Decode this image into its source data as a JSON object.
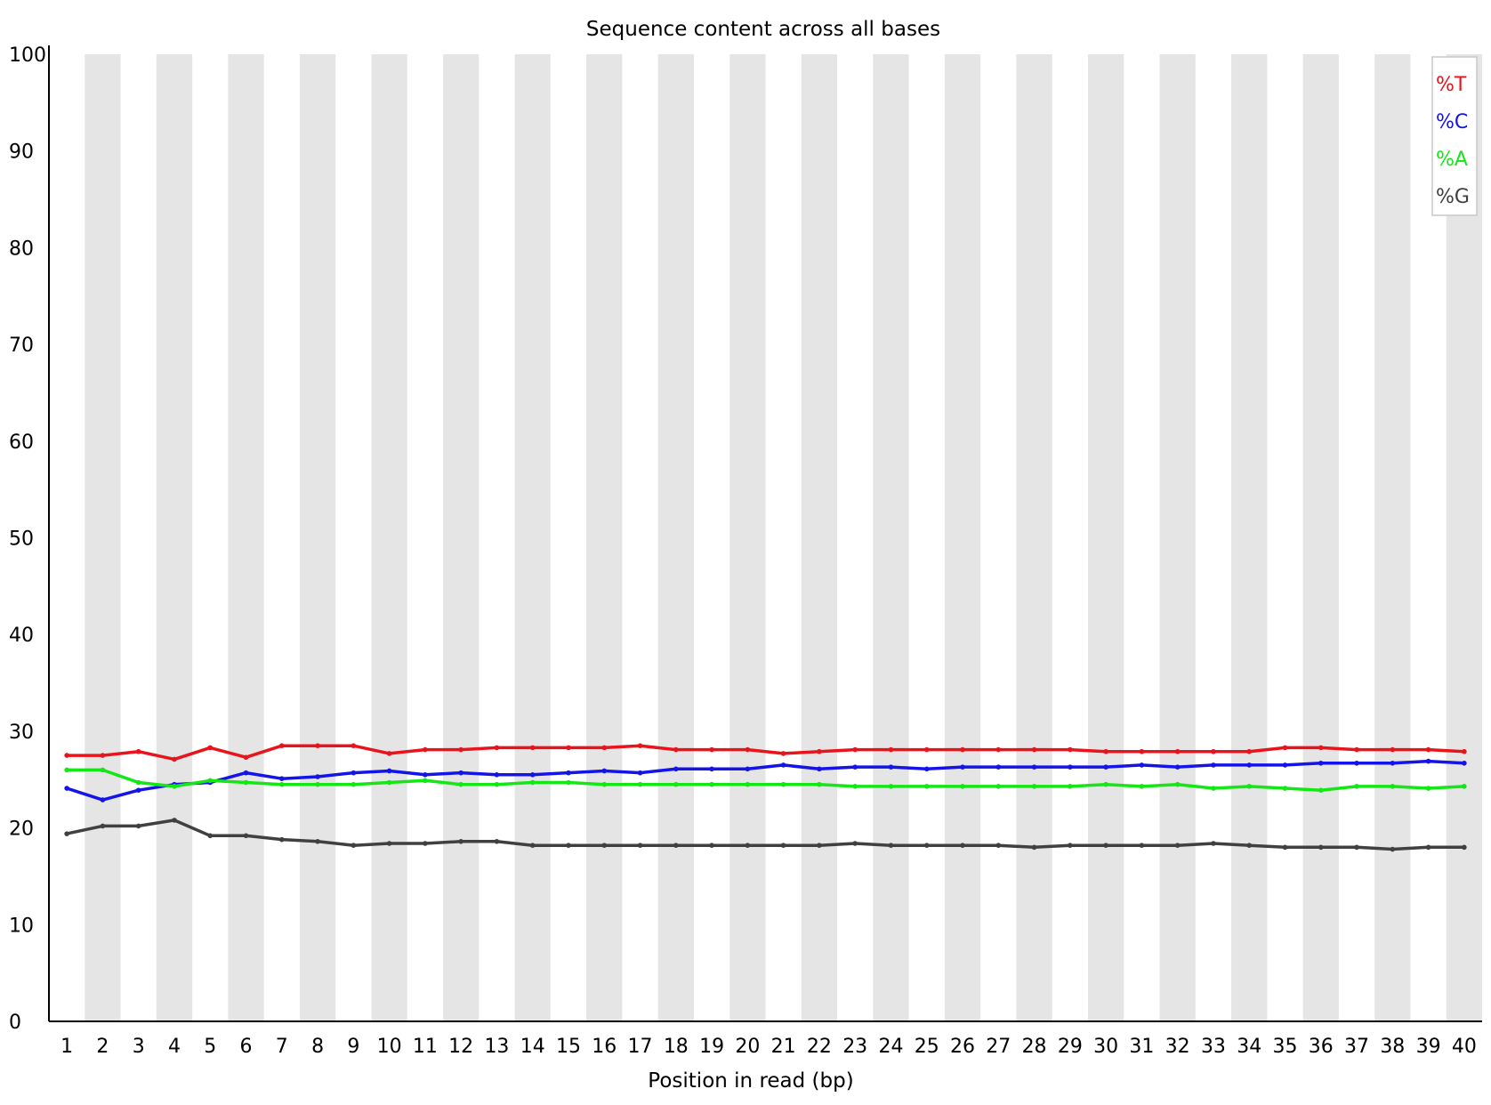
{
  "chart_data": {
    "type": "line",
    "title": "Sequence content across all bases",
    "xlabel": "Position in read (bp)",
    "ylabel": "",
    "ylim": [
      0,
      100
    ],
    "yticks": [
      "0",
      "10",
      "20",
      "30",
      "40",
      "50",
      "60",
      "70",
      "80",
      "90",
      "100"
    ],
    "categories": [
      "1",
      "2",
      "3",
      "4",
      "5",
      "6",
      "7",
      "8",
      "9",
      "10",
      "11",
      "12",
      "13",
      "14",
      "15",
      "16",
      "17",
      "18",
      "19",
      "20",
      "21",
      "22",
      "23",
      "24",
      "25",
      "26",
      "27",
      "28",
      "29",
      "30",
      "31",
      "32",
      "33",
      "34",
      "35",
      "36",
      "37",
      "38",
      "39",
      "40"
    ],
    "grid": "alternating vertical bands",
    "legend_position": "top-right",
    "series": [
      {
        "name": "%T",
        "color": "#e8141c",
        "values": [
          27.5,
          27.5,
          27.9,
          27.1,
          28.3,
          27.3,
          28.5,
          28.5,
          28.5,
          27.7,
          28.1,
          28.1,
          28.3,
          28.3,
          28.3,
          28.3,
          28.5,
          28.1,
          28.1,
          28.1,
          27.7,
          27.9,
          28.1,
          28.1,
          28.1,
          28.1,
          28.1,
          28.1,
          28.1,
          27.9,
          27.9,
          27.9,
          27.9,
          27.9,
          28.3,
          28.3,
          28.1,
          28.1,
          28.1,
          27.9
        ]
      },
      {
        "name": "%C",
        "color": "#1414e8",
        "values": [
          24.1,
          22.9,
          23.9,
          24.5,
          24.7,
          25.7,
          25.1,
          25.3,
          25.7,
          25.9,
          25.5,
          25.7,
          25.5,
          25.5,
          25.7,
          25.9,
          25.7,
          26.1,
          26.1,
          26.1,
          26.5,
          26.1,
          26.3,
          26.3,
          26.1,
          26.3,
          26.3,
          26.3,
          26.3,
          26.3,
          26.5,
          26.3,
          26.5,
          26.5,
          26.5,
          26.7,
          26.7,
          26.7,
          26.9,
          26.7
        ]
      },
      {
        "name": "%A",
        "color": "#14e814",
        "values": [
          26.0,
          26.0,
          24.7,
          24.3,
          24.9,
          24.7,
          24.5,
          24.5,
          24.5,
          24.7,
          24.9,
          24.5,
          24.5,
          24.7,
          24.7,
          24.5,
          24.5,
          24.5,
          24.5,
          24.5,
          24.5,
          24.5,
          24.3,
          24.3,
          24.3,
          24.3,
          24.3,
          24.3,
          24.3,
          24.5,
          24.3,
          24.5,
          24.1,
          24.3,
          24.1,
          23.9,
          24.3,
          24.3,
          24.1,
          24.3
        ]
      },
      {
        "name": "%G",
        "color": "#404040",
        "values": [
          19.4,
          20.2,
          20.2,
          20.8,
          19.2,
          19.2,
          18.8,
          18.6,
          18.2,
          18.4,
          18.4,
          18.6,
          18.6,
          18.2,
          18.2,
          18.2,
          18.2,
          18.2,
          18.2,
          18.2,
          18.2,
          18.2,
          18.4,
          18.2,
          18.2,
          18.2,
          18.2,
          18.0,
          18.2,
          18.2,
          18.2,
          18.2,
          18.4,
          18.2,
          18.0,
          18.0,
          18.0,
          17.8,
          18.0,
          18.0
        ]
      }
    ]
  }
}
